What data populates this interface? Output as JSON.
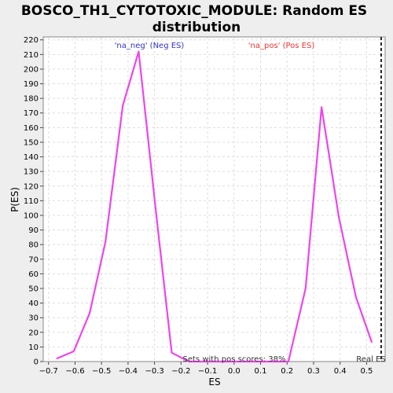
{
  "chart_data": {
    "type": "line",
    "title_line1": "BOSCO_TH1_CYTOTOXIC_MODULE: Random ES",
    "title_line2": "distribution",
    "xlabel": "ES",
    "ylabel": "P(ES)",
    "xlim": [
      -0.72,
      0.57
    ],
    "ylim": [
      0,
      222
    ],
    "x_ticks": [
      -0.7,
      -0.6,
      -0.5,
      -0.4,
      -0.3,
      -0.2,
      -0.1,
      0.0,
      0.1,
      0.2,
      0.3,
      0.4,
      0.5
    ],
    "x_tick_labels": [
      "−0.7",
      "−0.6",
      "−0.5",
      "−0.4",
      "−0.3",
      "−0.2",
      "−0.1",
      "0.0",
      "0.1",
      "0.2",
      "0.3",
      "0.4",
      "0.5"
    ],
    "y_ticks": [
      0,
      10,
      20,
      30,
      40,
      50,
      60,
      70,
      80,
      90,
      100,
      110,
      120,
      130,
      140,
      150,
      160,
      170,
      180,
      190,
      200,
      210,
      220
    ],
    "grid": true,
    "series": [
      {
        "color": "#ee44ee",
        "x": [
          -0.67,
          -0.605,
          -0.545,
          -0.485,
          -0.42,
          -0.36,
          -0.295,
          -0.235,
          -0.17,
          0.0,
          0.15,
          0.205,
          0.27,
          0.33,
          0.395,
          0.46,
          0.52
        ],
        "y": [
          2,
          7,
          33,
          82,
          175,
          212,
          103,
          6,
          0,
          0,
          0,
          0,
          50,
          174,
          99,
          44,
          13
        ]
      }
    ],
    "real_es": 0.555,
    "real_es_label": "Real ES",
    "annotations": {
      "neg_label": "'na_neg' (Neg ES)",
      "pos_label": "'na_pos' (Pos ES)",
      "pos_scores_text": "Sets with pos scores: 38%"
    },
    "colors": {
      "neg": "#3333cc",
      "pos": "#ee3333",
      "line": "#ee44ee",
      "grid": "#dddddd",
      "plot_bg": "#ffffff",
      "page_bg": "#eeeeee"
    }
  }
}
